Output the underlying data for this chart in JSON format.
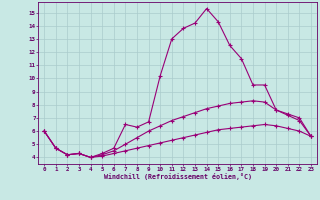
{
  "xlabel": "Windchill (Refroidissement éolien,°C)",
  "xlim": [
    -0.5,
    23.5
  ],
  "ylim": [
    3.5,
    15.8
  ],
  "xticks": [
    0,
    1,
    2,
    3,
    4,
    5,
    6,
    7,
    8,
    9,
    10,
    11,
    12,
    13,
    14,
    15,
    16,
    17,
    18,
    19,
    20,
    21,
    22,
    23
  ],
  "yticks": [
    4,
    5,
    6,
    7,
    8,
    9,
    10,
    11,
    12,
    13,
    14,
    15
  ],
  "bg_color": "#c8e8e4",
  "grid_color": "#aacccc",
  "line_color": "#990077",
  "line1_x": [
    0,
    1,
    2,
    3,
    4,
    5,
    6,
    7,
    8,
    9,
    10,
    11,
    12,
    13,
    14,
    15,
    16,
    17,
    18,
    19,
    20,
    21,
    22,
    23
  ],
  "line1_y": [
    6.0,
    4.7,
    4.2,
    4.3,
    4.0,
    4.3,
    4.7,
    6.5,
    6.3,
    6.7,
    10.2,
    13.0,
    13.8,
    14.2,
    15.3,
    14.3,
    12.5,
    11.5,
    9.5,
    9.5,
    7.6,
    7.2,
    6.8,
    5.6
  ],
  "line2_x": [
    0,
    1,
    2,
    3,
    4,
    5,
    6,
    7,
    8,
    9,
    10,
    11,
    12,
    13,
    14,
    15,
    16,
    17,
    18,
    19,
    20,
    21,
    22,
    23
  ],
  "line2_y": [
    6.0,
    4.7,
    4.2,
    4.3,
    4.0,
    4.2,
    4.5,
    5.0,
    5.5,
    6.0,
    6.4,
    6.8,
    7.1,
    7.4,
    7.7,
    7.9,
    8.1,
    8.2,
    8.3,
    8.2,
    7.6,
    7.3,
    7.0,
    5.6
  ],
  "line3_x": [
    0,
    1,
    2,
    3,
    4,
    5,
    6,
    7,
    8,
    9,
    10,
    11,
    12,
    13,
    14,
    15,
    16,
    17,
    18,
    19,
    20,
    21,
    22,
    23
  ],
  "line3_y": [
    6.0,
    4.7,
    4.2,
    4.3,
    4.0,
    4.1,
    4.3,
    4.5,
    4.7,
    4.9,
    5.1,
    5.3,
    5.5,
    5.7,
    5.9,
    6.1,
    6.2,
    6.3,
    6.4,
    6.5,
    6.4,
    6.2,
    6.0,
    5.6
  ]
}
